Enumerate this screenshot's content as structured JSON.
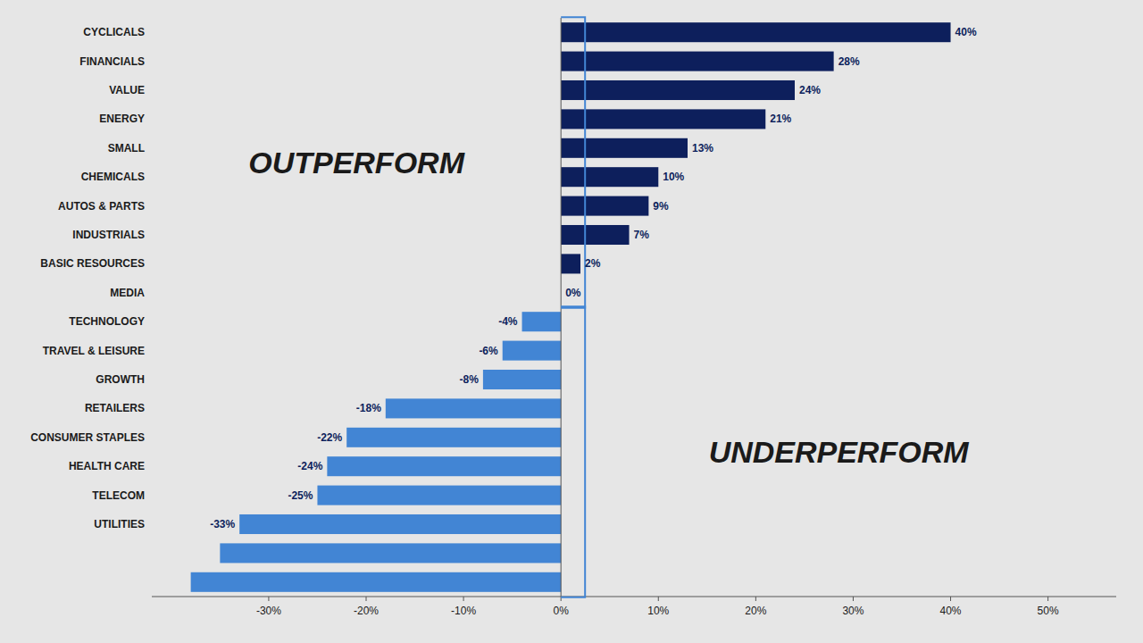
{
  "chart_data": {
    "type": "bar",
    "orientation": "horizontal",
    "categories": [
      "CYCLICALS",
      "FINANCIALS",
      "VALUE",
      "ENERGY",
      "SMALL",
      "CHEMICALS",
      "AUTOS & PARTS",
      "INDUSTRIALS",
      "BASIC RESOURCES",
      "MEDIA",
      "TECHNOLOGY",
      "TRAVEL & LEISURE",
      "GROWTH",
      "RETAILERS",
      "CONSUMER STAPLES",
      "HEALTH CARE",
      "TELECOM",
      "UTILITIES",
      null,
      null
    ],
    "values": [
      40,
      28,
      24,
      21,
      13,
      10,
      9,
      7,
      2,
      0,
      -4,
      -6,
      -8,
      -18,
      -22,
      -24,
      -25,
      -33,
      -35,
      -38
    ],
    "value_labels": [
      "40%",
      "28%",
      "24%",
      "21%",
      "13%",
      "10%",
      "9%",
      "7%",
      "2%",
      "0%",
      "-4%",
      "-6%",
      "-8%",
      "-18%",
      "-22%",
      "-24%",
      "-25%",
      "-33%",
      null,
      null
    ],
    "colors": [
      "#0d1f5c",
      "#0d1f5c",
      "#0d1f5c",
      "#0d1f5c",
      "#0d1f5c",
      "#0d1f5c",
      "#0d1f5c",
      "#0d1f5c",
      "#0d1f5c",
      "#0d1f5c",
      "#4285d4",
      "#4285d4",
      "#4285d4",
      "#4285d4",
      "#4285d4",
      "#4285d4",
      "#4285d4",
      "#4285d4",
      "#4285d4",
      "#4285d4"
    ],
    "data_labels": true,
    "annotations": [
      "OUTPERFORM",
      "UNDERPERFORM"
    ],
    "xlim": [
      -42,
      57
    ],
    "xticks": [
      {
        "value": -30,
        "label": "-30%"
      },
      {
        "value": -20,
        "label": "-20%"
      },
      {
        "value": -10,
        "label": "-10%"
      },
      {
        "value": 0,
        "label": "0%"
      },
      {
        "value": 10,
        "label": "10%"
      },
      {
        "value": 20,
        "label": "20%"
      },
      {
        "value": 30,
        "label": "30%"
      },
      {
        "value": 40,
        "label": "40%"
      },
      {
        "value": 50,
        "label": "50%"
      }
    ],
    "grid": false
  }
}
